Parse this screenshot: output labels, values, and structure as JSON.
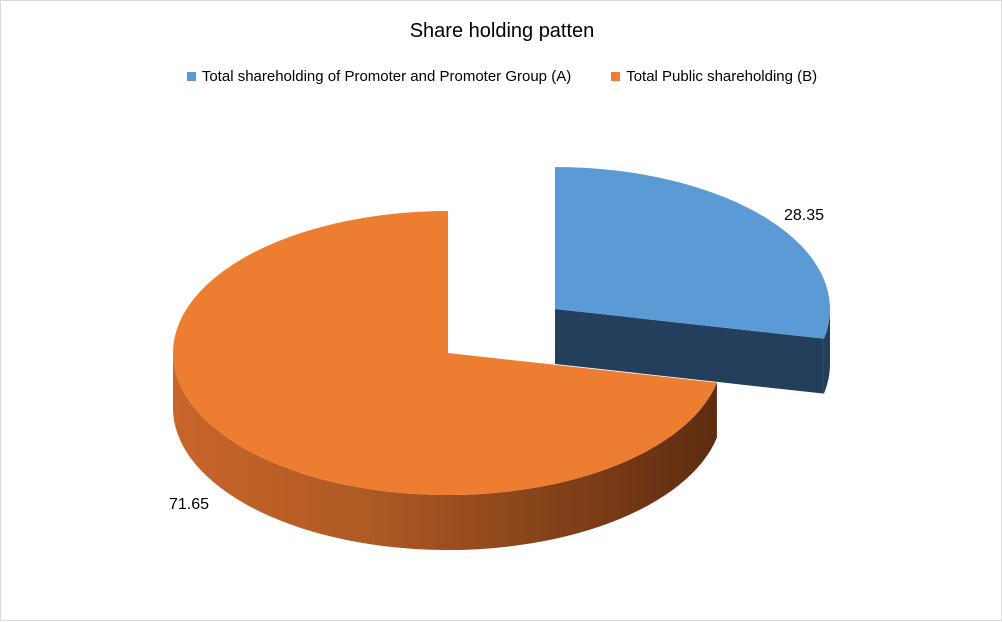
{
  "chart_data": {
    "type": "pie",
    "title": "Share holding patten",
    "categories": [
      "Total shareholding of Promoter and Promoter Group (A)",
      "Total Public shareholding (B)"
    ],
    "values": [
      28.35,
      71.65
    ],
    "data_labels": [
      "28.35",
      "71.65"
    ],
    "colors": [
      "#5b9bd5",
      "#ed7d31"
    ],
    "style": "3d-exploded",
    "legend_position": "top"
  }
}
